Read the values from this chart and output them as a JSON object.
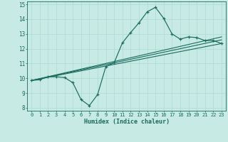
{
  "xlabel": "Humidex (Indice chaleur)",
  "xlim": [
    -0.5,
    23.5
  ],
  "ylim": [
    7.8,
    15.2
  ],
  "xticks": [
    0,
    1,
    2,
    3,
    4,
    5,
    6,
    7,
    8,
    9,
    10,
    11,
    12,
    13,
    14,
    15,
    16,
    17,
    18,
    19,
    20,
    21,
    22,
    23
  ],
  "yticks": [
    8,
    9,
    10,
    11,
    12,
    13,
    14,
    15
  ],
  "bg_color": "#c8eae4",
  "line_color": "#1a6b5e",
  "grid_color": "#b0ddd6",
  "main_x": [
    0,
    1,
    2,
    3,
    4,
    5,
    6,
    7,
    8,
    9,
    10,
    11,
    12,
    13,
    14,
    15,
    16,
    17,
    18,
    19,
    20,
    21,
    22,
    23
  ],
  "main_y": [
    9.85,
    9.9,
    10.1,
    10.1,
    10.05,
    9.7,
    8.55,
    8.15,
    8.9,
    10.8,
    11.05,
    12.4,
    13.1,
    13.75,
    14.5,
    14.8,
    14.05,
    13.0,
    12.65,
    12.8,
    12.75,
    12.55,
    12.55,
    12.35
  ],
  "ref_lines": [
    {
      "x0": 0,
      "y0": 9.85,
      "x1": 23,
      "y1": 12.35
    },
    {
      "x0": 0,
      "y0": 9.85,
      "x1": 23,
      "y1": 12.6
    },
    {
      "x0": 0,
      "y0": 9.85,
      "x1": 23,
      "y1": 12.8
    }
  ]
}
